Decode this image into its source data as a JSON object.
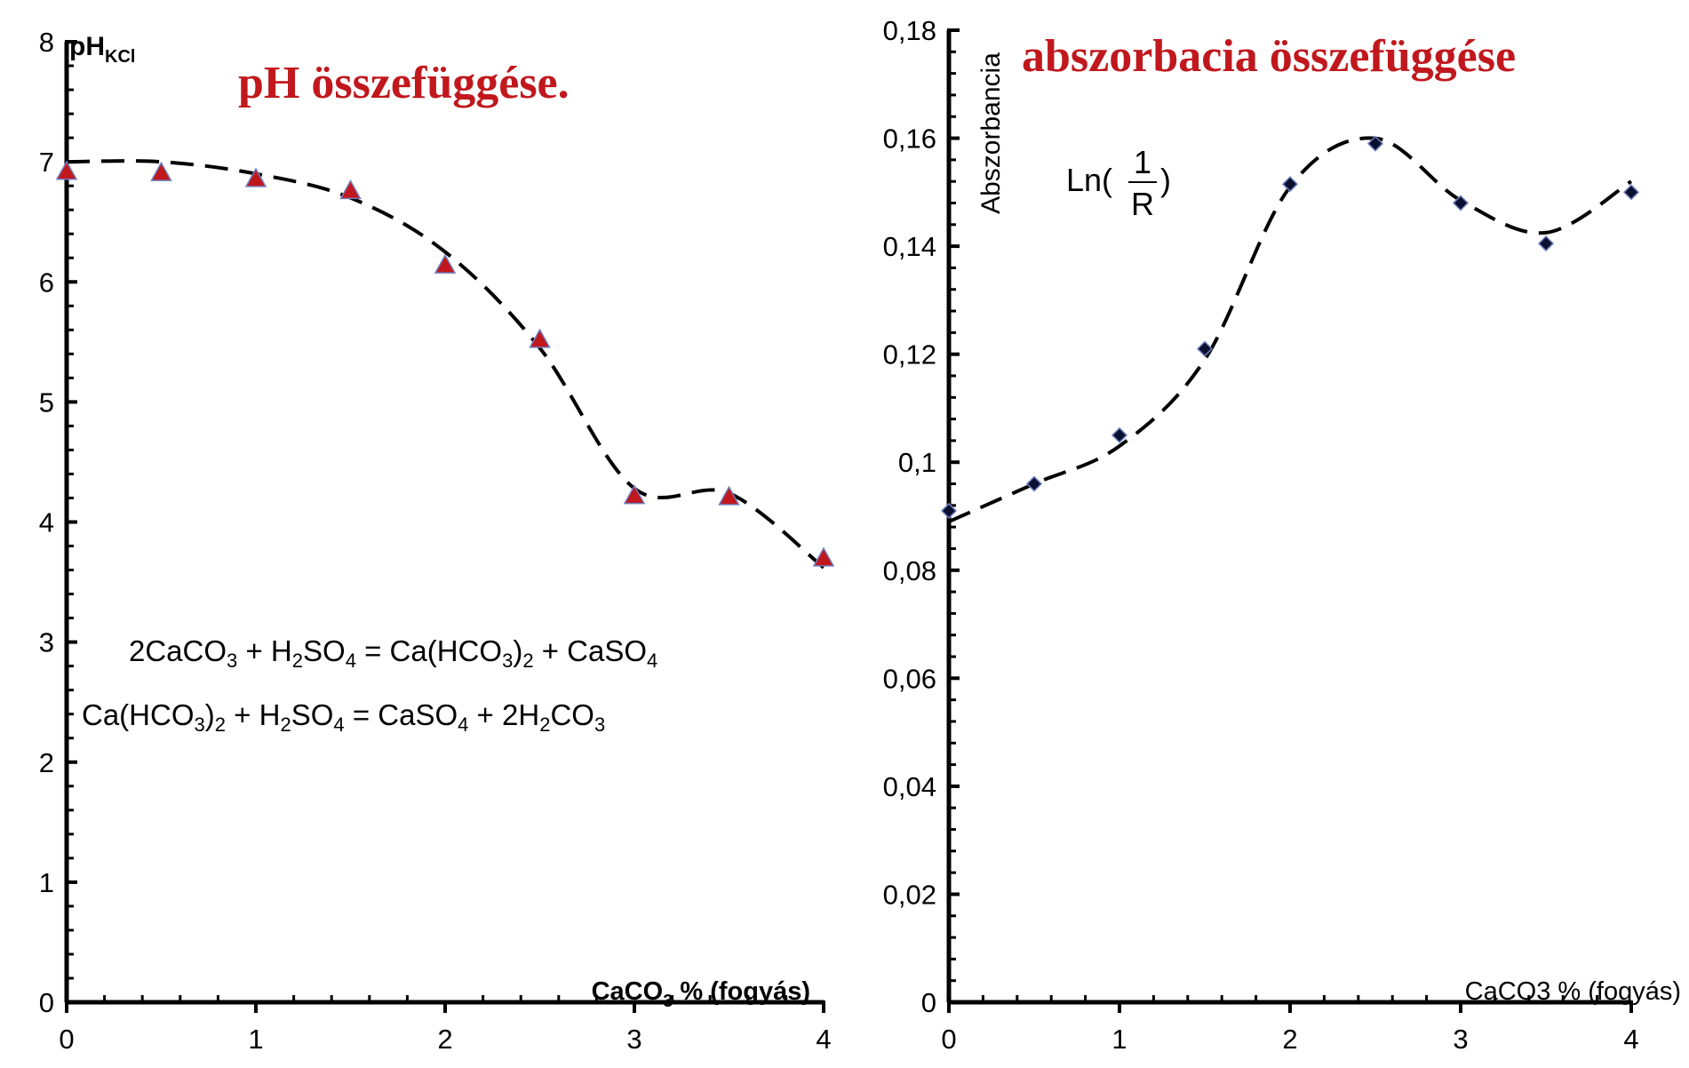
{
  "colors": {
    "title": "#c0181d",
    "axis": "#000000",
    "curve": "#000000",
    "ph_marker": "#c0181d",
    "ph_marker_edge": "#6f7ec0",
    "abs_marker": "#0a1030",
    "abs_marker_edge": "#6f7ec0"
  },
  "chart_data": [
    {
      "type": "scatter",
      "title": "pH összefüggése.",
      "ylabel": "pH",
      "ylabel_sub": "KCl",
      "xlabel": "CaCO",
      "xlabel_sub": "3",
      "xlabel_suffix": " % (fogyás)",
      "xlim": [
        0,
        4
      ],
      "ylim": [
        0,
        8
      ],
      "x_ticks": [
        "0",
        "1",
        "2",
        "3",
        "4"
      ],
      "y_ticks": [
        "0",
        "1",
        "2",
        "3",
        "4",
        "5",
        "6",
        "7",
        "8"
      ],
      "grid": false,
      "marker": "triangle-icon",
      "trendline": "dashed smooth curve",
      "series": [
        {
          "x": [
            0,
            0.5,
            1,
            1.5,
            2,
            2.5,
            3,
            3.5,
            4
          ],
          "y": [
            6.92,
            6.91,
            6.86,
            6.76,
            6.14,
            5.52,
            4.22,
            4.21,
            3.7
          ]
        }
      ],
      "curve": {
        "x": [
          0,
          0.5,
          1,
          1.5,
          2,
          2.5,
          3,
          3.5,
          4
        ],
        "y": [
          7.0,
          7.0,
          6.9,
          6.7,
          6.25,
          5.45,
          4.28,
          4.24,
          3.62
        ]
      },
      "equations": [
        [
          "2CaCO",
          {
            "sub": "3"
          },
          " + H",
          {
            "sub": "2"
          },
          "SO",
          {
            "sub": "4"
          },
          " = Ca(HCO",
          {
            "sub": "3"
          },
          ")",
          {
            "sub": "2"
          },
          " + CaSO",
          {
            "sub": "4"
          }
        ],
        [
          "Ca(HCO",
          {
            "sub": "3"
          },
          ")",
          {
            "sub": "2"
          },
          " + H",
          {
            "sub": "2"
          },
          "SO",
          {
            "sub": "4"
          },
          " = CaSO",
          {
            "sub": "4"
          },
          " + 2H",
          {
            "sub": "2"
          },
          "CO",
          {
            "sub": "3"
          }
        ]
      ]
    },
    {
      "type": "scatter",
      "title": "abszorbacia összefüggése",
      "ylabel": "Abszorbancia",
      "xlabel": "CaCO3 % (fogyás)",
      "formula_prefix": "Ln(",
      "formula_numerator": "1",
      "formula_denominator": "R",
      "formula_suffix": ")",
      "xlim": [
        0,
        4
      ],
      "ylim": [
        0,
        0.18
      ],
      "x_ticks": [
        "0",
        "1",
        "2",
        "3",
        "4"
      ],
      "y_ticks": [
        "0",
        "0,02",
        "0,04",
        "0,06",
        "0,08",
        "0,1",
        "0,12",
        "0,14",
        "0,16",
        "0,18"
      ],
      "grid": false,
      "marker": "diamond-icon",
      "trendline": "dashed smooth curve",
      "series": [
        {
          "x": [
            0,
            0.5,
            1,
            1.5,
            2,
            2.5,
            3,
            3.5,
            4
          ],
          "y": [
            0.091,
            0.096,
            0.105,
            0.121,
            0.1515,
            0.159,
            0.148,
            0.1405,
            0.15
          ]
        }
      ],
      "curve": {
        "x": [
          0,
          0.5,
          1,
          1.5,
          2,
          2.5,
          3,
          3.5,
          4
        ],
        "y": [
          0.089,
          0.096,
          0.103,
          0.119,
          0.151,
          0.16,
          0.1485,
          0.1425,
          0.152
        ]
      }
    }
  ]
}
